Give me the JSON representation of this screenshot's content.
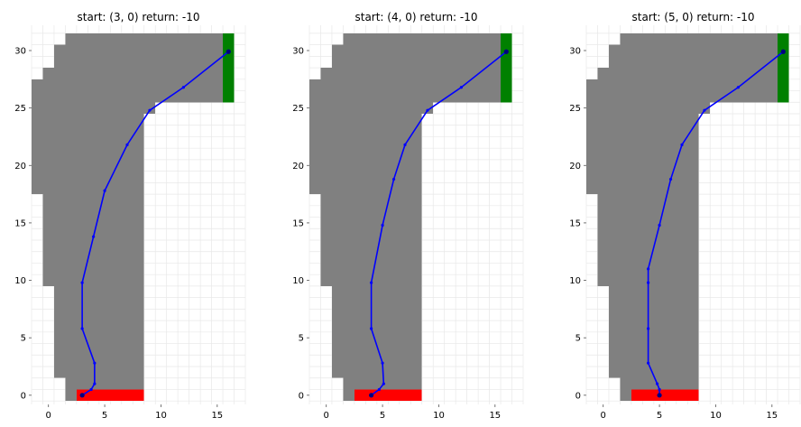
{
  "chart_data": [
    {
      "type": "line",
      "title": "start: (3, 0) return: -10",
      "xlabel": "",
      "ylabel": "",
      "xlim": [
        -1.5,
        17.5
      ],
      "ylim": [
        -0.8,
        32.2
      ],
      "xticks": [
        0,
        5,
        10,
        15
      ],
      "yticks": [
        0,
        5,
        10,
        15,
        20,
        25,
        30
      ],
      "grid": true,
      "track_color": "#808080",
      "start_color": "#ff0000",
      "finish_color": "#008000",
      "path_color": "#0000ff",
      "path": {
        "x": [
          3,
          3.8,
          4.1,
          4.1,
          3,
          3,
          4,
          5,
          7,
          9,
          12,
          16
        ],
        "y": [
          0,
          0.5,
          1,
          2.8,
          5.8,
          9.8,
          13.8,
          17.8,
          21.8,
          24.8,
          26.8,
          29.9
        ]
      }
    },
    {
      "type": "line",
      "title": "start: (4, 0) return: -10",
      "xlabel": "",
      "ylabel": "",
      "xlim": [
        -1.5,
        17.5
      ],
      "ylim": [
        -0.8,
        32.2
      ],
      "xticks": [
        0,
        5,
        10,
        15
      ],
      "yticks": [
        0,
        5,
        10,
        15,
        20,
        25,
        30
      ],
      "grid": true,
      "track_color": "#808080",
      "start_color": "#ff0000",
      "finish_color": "#008000",
      "path_color": "#0000ff",
      "path": {
        "x": [
          4,
          4.7,
          5.1,
          5,
          4,
          4,
          5,
          6,
          7,
          9,
          12,
          16
        ],
        "y": [
          0,
          0.5,
          1,
          2.8,
          5.8,
          9.8,
          14.8,
          18.8,
          21.8,
          24.8,
          26.8,
          29.9
        ]
      }
    },
    {
      "type": "line",
      "title": "start: (5, 0) return: -10",
      "xlabel": "",
      "ylabel": "",
      "xlim": [
        -1.5,
        17.5
      ],
      "ylim": [
        -0.8,
        32.2
      ],
      "xticks": [
        0,
        5,
        10,
        15
      ],
      "yticks": [
        0,
        5,
        10,
        15,
        20,
        25,
        30
      ],
      "grid": true,
      "track_color": "#808080",
      "start_color": "#ff0000",
      "finish_color": "#008000",
      "path_color": "#0000ff",
      "path": {
        "x": [
          5,
          5,
          4.8,
          4,
          4,
          4,
          4,
          5,
          6,
          7,
          9,
          12,
          16
        ],
        "y": [
          0,
          0.5,
          1,
          2.8,
          5.8,
          9.8,
          11,
          14.8,
          18.8,
          21.8,
          24.8,
          26.8,
          29.9
        ]
      }
    }
  ]
}
